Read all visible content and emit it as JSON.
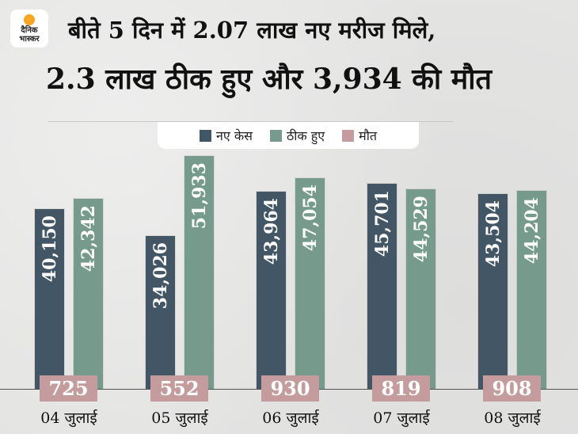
{
  "brand": {
    "line1": "दैनिक",
    "line2": "भास्कर"
  },
  "title": {
    "line1": "बीते 5 दिन में 2.07 लाख नए मरीज मिले,",
    "line2": "2.3 लाख ठीक हुए और 3,934 की मौत"
  },
  "legend": [
    {
      "label": "नए केस",
      "color": "#435665"
    },
    {
      "label": "ठीक हुए",
      "color": "#769b8c"
    },
    {
      "label": "मौत",
      "color": "#c49c9d"
    }
  ],
  "chart_data": {
    "type": "bar",
    "title": "बीते 5 दिन में 2.07 लाख नए मरीज मिले, 2.3 लाख ठीक हुए और 3,934 की मौत",
    "categories": [
      "04 जुलाई",
      "05 जुलाई",
      "06 जुलाई",
      "07 जुलाई",
      "08 जुलाई"
    ],
    "series": [
      {
        "name": "नए केस",
        "color": "#435665",
        "values": [
          40150,
          34026,
          43964,
          45701,
          43504
        ],
        "labels": [
          "40,150",
          "34,026",
          "43,964",
          "45,701",
          "43,504"
        ]
      },
      {
        "name": "ठीक हुए",
        "color": "#769b8c",
        "values": [
          42342,
          51933,
          47054,
          44529,
          44204
        ],
        "labels": [
          "42,342",
          "51,933",
          "47,054",
          "44,529",
          "44,204"
        ]
      },
      {
        "name": "मौत",
        "color": "#c49c9d",
        "values": [
          725,
          552,
          930,
          819,
          908
        ],
        "labels": [
          "725",
          "552",
          "930",
          "819",
          "908"
        ]
      }
    ],
    "xlabel": "",
    "ylabel": "",
    "grid": false,
    "legend_position": "top"
  }
}
